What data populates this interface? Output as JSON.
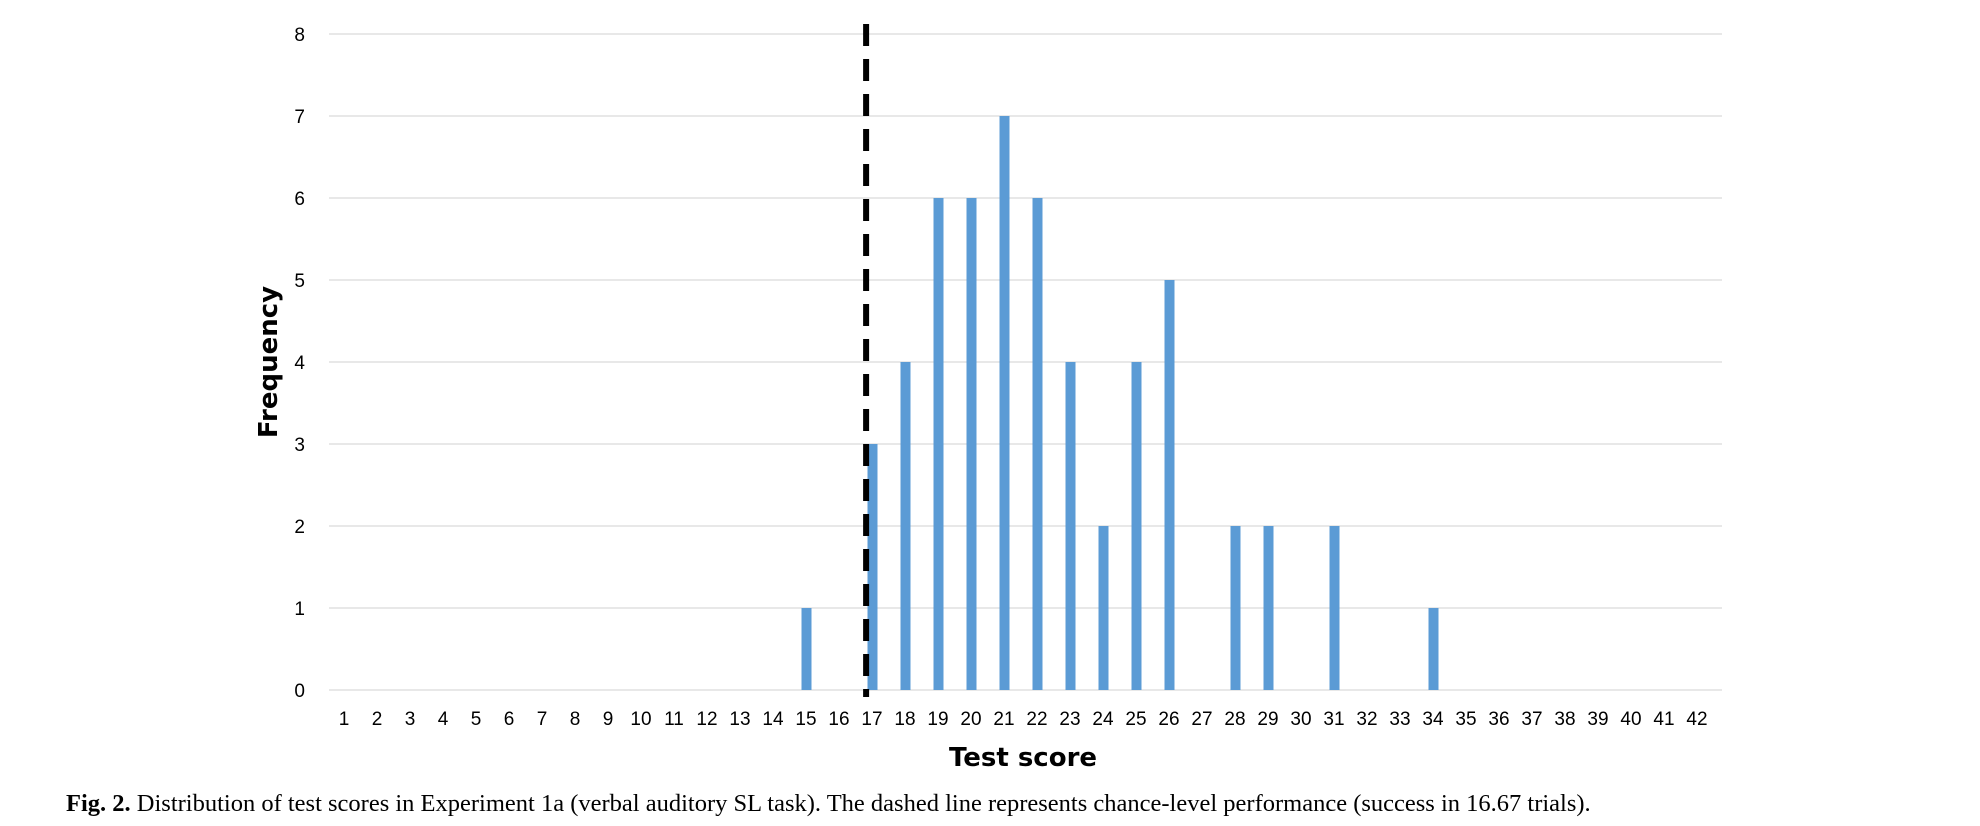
{
  "chart_data": {
    "type": "bar",
    "xlabel": "Test score",
    "ylabel": "Frequency",
    "categories": [
      "1",
      "2",
      "3",
      "4",
      "5",
      "6",
      "7",
      "8",
      "9",
      "10",
      "11",
      "12",
      "13",
      "14",
      "15",
      "16",
      "17",
      "18",
      "19",
      "20",
      "21",
      "22",
      "23",
      "24",
      "25",
      "26",
      "27",
      "28",
      "29",
      "30",
      "31",
      "32",
      "33",
      "34",
      "35",
      "36",
      "37",
      "38",
      "39",
      "40",
      "41",
      "42"
    ],
    "values": [
      0,
      0,
      0,
      0,
      0,
      0,
      0,
      0,
      0,
      0,
      0,
      0,
      0,
      0,
      1,
      0,
      3,
      4,
      6,
      6,
      7,
      6,
      4,
      2,
      4,
      5,
      0,
      2,
      2,
      0,
      2,
      0,
      0,
      1,
      0,
      0,
      0,
      0,
      0,
      0,
      0,
      0
    ],
    "ylim": [
      0,
      8
    ],
    "yticks": [
      0,
      1,
      2,
      3,
      4,
      5,
      6,
      7,
      8
    ],
    "grid": true,
    "bar_color": "#5b9bd5",
    "grid_color": "#d9d9d9",
    "reference_line": {
      "x": 16.67,
      "style": "dashed",
      "color": "#000000"
    }
  },
  "caption": {
    "label": "Fig. 2.",
    "text": " Distribution of test scores in Experiment 1a (verbal auditory SL task). The dashed line represents chance-level performance (success in 16.67 trials)."
  }
}
